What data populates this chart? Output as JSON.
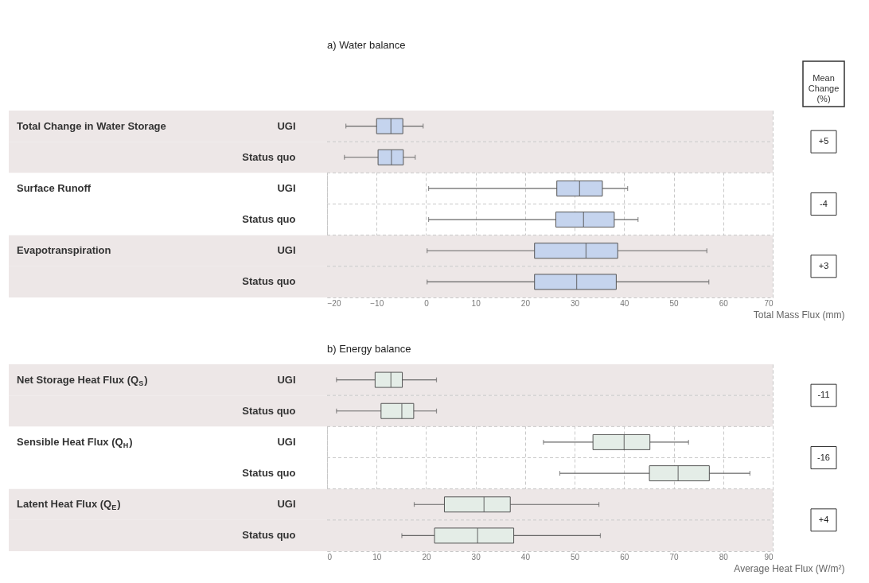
{
  "chart_data": [
    {
      "type": "box",
      "title": "a) Water balance",
      "xlabel": "Total Mass Flux (mm)",
      "orientation": "horizontal",
      "categories": [
        "UGI",
        "Status quo",
        "UGI",
        "Status quo",
        "UGI",
        "Status quo"
      ],
      "series": [
        {
          "color": "#c5d4ee",
          "boxes": [
            {
              "low": -16.2,
              "q1": -10.0,
              "median": -7.1,
              "q3": -4.7,
              "high": -0.6
            },
            {
              "low": -16.5,
              "q1": -9.7,
              "median": -7.0,
              "q3": -4.6,
              "high": -2.2
            },
            {
              "low": 0.5,
              "q1": 26.4,
              "median": 31.0,
              "q3": 35.6,
              "high": 40.7
            },
            {
              "low": 0.5,
              "q1": 26.2,
              "median": 31.8,
              "q3": 38.0,
              "high": 42.8
            },
            {
              "low": 0.2,
              "q1": 21.9,
              "median": 32.3,
              "q3": 38.7,
              "high": 56.7
            },
            {
              "low": 0.2,
              "q1": 21.9,
              "median": 30.4,
              "q3": 38.4,
              "high": 57.1
            }
          ]
        }
      ],
      "xlim": [
        -20,
        70
      ],
      "xticks": [
        -20,
        -10,
        0,
        10,
        20,
        30,
        40,
        50,
        60,
        70
      ],
      "grid": true,
      "annotations": [
        "Total Change in Water Storage",
        "Surface Runoff",
        "Evapotranspiration",
        "+5",
        "-4",
        "+3",
        "Mean Change (%)"
      ]
    },
    {
      "type": "box",
      "title": "b) Energy balance",
      "xlabel": "Average Heat Flux (W/m²)",
      "orientation": "horizontal",
      "categories": [
        "UGI",
        "Status quo",
        "UGI",
        "Status quo",
        "UGI",
        "Status quo"
      ],
      "series": [
        {
          "color": "#e4ede7",
          "boxes": [
            {
              "low": 1.9,
              "q1": 9.7,
              "median": 12.9,
              "q3": 15.2,
              "high": 22.1
            },
            {
              "low": 1.9,
              "q1": 10.9,
              "median": 15.1,
              "q3": 17.5,
              "high": 22.1
            },
            {
              "low": 43.7,
              "q1": 53.7,
              "median": 60.0,
              "q3": 65.2,
              "high": 73.0
            },
            {
              "low": 47.0,
              "q1": 65.1,
              "median": 70.9,
              "q3": 77.2,
              "high": 85.4
            },
            {
              "low": 17.6,
              "q1": 23.7,
              "median": 31.7,
              "q3": 37.0,
              "high": 54.9
            },
            {
              "low": 15.1,
              "q1": 21.7,
              "median": 30.4,
              "q3": 37.7,
              "high": 55.2
            }
          ]
        }
      ],
      "xlim": [
        0,
        90
      ],
      "xticks": [
        0,
        10,
        20,
        30,
        40,
        50,
        60,
        70,
        80,
        90
      ],
      "grid": true,
      "annotations": [
        "Net Storage Heat Flux (Q$_{S}$)",
        "Sensible Heat Flux (Q$_{H}$)",
        "Latent Heat Flux (Q$_{E}$)",
        "-11",
        "-16",
        "+4"
      ]
    }
  ]
}
